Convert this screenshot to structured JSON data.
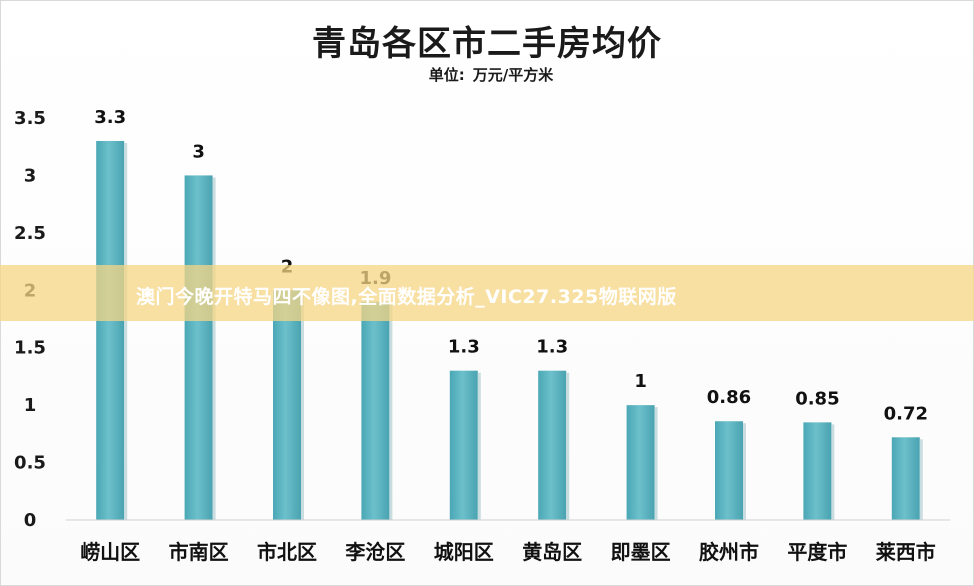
{
  "chart_data": {
    "type": "bar",
    "title": "青岛各区市二手房均价",
    "subtitle_prefix": "单位:",
    "subtitle_unit": "万元/平方米",
    "categories": [
      "崂山区",
      "市南区",
      "市北区",
      "李沧区",
      "城阳区",
      "黄岛区",
      "即墨区",
      "胶州市",
      "平度市",
      "莱西市"
    ],
    "values": [
      3.3,
      3,
      2,
      1.9,
      1.3,
      1.3,
      1,
      0.86,
      0.85,
      0.72
    ],
    "data_labels": [
      "3.3",
      "3",
      "2",
      "1.9",
      "1.3",
      "1.3",
      "1",
      "0.86",
      "0.85",
      "0.72"
    ],
    "ylim": [
      0,
      3.5
    ],
    "yticks": [
      "0",
      "0.5",
      "1",
      "1.5",
      "2",
      "2.5",
      "3",
      "3.5"
    ],
    "grid": false,
    "bar_color": "#5fb6c2"
  },
  "overlay": {
    "text": "澳门今晚开特马四不像图,全面数据分析_VIC27.325物联网版"
  }
}
